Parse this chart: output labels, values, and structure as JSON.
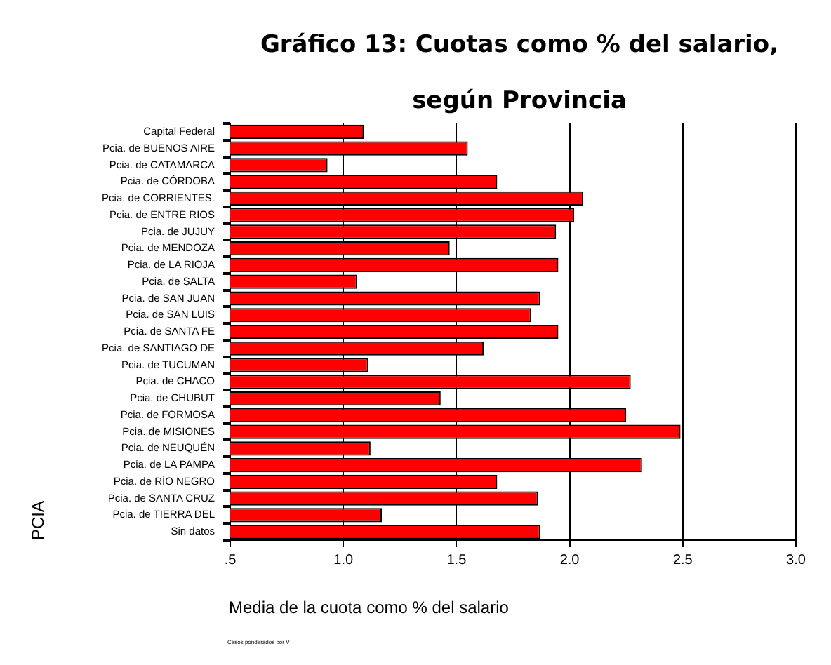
{
  "chart_data": {
    "type": "bar",
    "orientation": "horizontal",
    "title": "Gráfico 13: Cuotas como % del salario, según Provincia",
    "xlabel": "Media de la cuota como % del salario",
    "ylabel": "PCIA",
    "categories": [
      "Capital Federal",
      "Pcia. de BUENOS AIRE",
      "Pcia. de CATAMARCA",
      "Pcia. de CÓRDOBA",
      "Pcia. de CORRIENTES.",
      "Pcia. de ENTRE RIOS",
      "Pcia. de JUJUY",
      "Pcia. de MENDOZA",
      "Pcia. de LA RIOJA",
      "Pcia. de SALTA",
      "Pcia. de SAN JUAN",
      "Pcia. de SAN LUIS",
      "Pcia. de SANTA FE",
      "Pcia. de SANTIAGO DE",
      "Pcia. de TUCUMAN",
      "Pcia. de CHACO",
      "Pcia. de CHUBUT",
      "Pcia. de FORMOSA",
      "Pcia. de MISIONES",
      "Pcia. de NEUQUÉN",
      "Pcia. de LA PAMPA",
      "Pcia. de RÍO NEGRO",
      "Pcia. de SANTA CRUZ",
      "Pcia. de TIERRA DEL",
      "Sin datos"
    ],
    "values": [
      1.09,
      1.55,
      0.93,
      1.68,
      2.06,
      2.02,
      1.94,
      1.47,
      1.95,
      1.06,
      1.87,
      1.83,
      1.95,
      1.62,
      1.11,
      2.27,
      1.43,
      2.25,
      2.49,
      1.12,
      2.32,
      1.68,
      1.86,
      1.17,
      1.87
    ],
    "color": "#ff0000",
    "xlim": [
      0.5,
      3.0
    ],
    "xticks": [
      {
        "value": 0.5,
        "label": ".5"
      },
      {
        "value": 1.0,
        "label": "1.0"
      },
      {
        "value": 1.5,
        "label": "1.5"
      },
      {
        "value": 2.0,
        "label": "2.0"
      },
      {
        "value": 2.5,
        "label": "2.5"
      },
      {
        "value": 3.0,
        "label": "3.0"
      }
    ],
    "grid": "x",
    "legend": false,
    "annotations": [
      "Casos ponderados por V"
    ]
  }
}
